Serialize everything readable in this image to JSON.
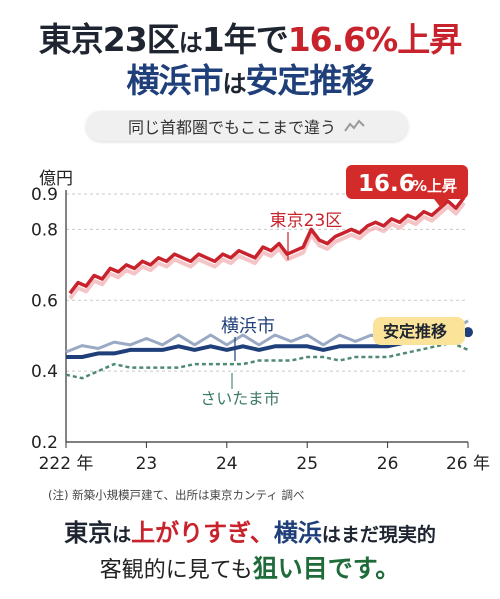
{
  "headline": {
    "line1_part1": "東京23区",
    "line1_part2": "は",
    "line1_part3": "1年で",
    "line1_part4": "16.6%上昇",
    "line2_part1": "横浜市",
    "line2_part2": "は",
    "line2_part3": "安定推移"
  },
  "subtitle": "同じ首都圏でもここまで違う",
  "colors": {
    "tokyo": "#c8232c",
    "yokohama": "#1f3f7a",
    "yokohama_light": "#9aaac4",
    "saitama": "#4f8a72",
    "saitama_light": "#a9c0b6",
    "callout_red": "#d32a2a",
    "callout_yellow": "#fbe39a"
  },
  "chart_data": {
    "type": "line",
    "yunit": "億円",
    "ylim": [
      0.2,
      0.9
    ],
    "yticks": [
      "0.2",
      "0.4",
      "0.6",
      "0.8",
      "0.9"
    ],
    "ytick_values": [
      0.2,
      0.4,
      0.6,
      0.8,
      0.9
    ],
    "xticks": [
      "222 年",
      "23",
      "24",
      "25",
      "26",
      "26 年"
    ],
    "xtick_values": [
      2022,
      2023,
      2024,
      2025,
      2026,
      2027
    ],
    "xlim": [
      2022,
      2027
    ],
    "grid": "horizontal dashed",
    "callouts": {
      "tokyo_badge_main": "16.6",
      "tokyo_badge_sub": "%上昇",
      "yokohama_badge": "安定推移"
    },
    "series": [
      {
        "name": "東京23区",
        "color": "#c8232c",
        "style": "solid-with-light-band",
        "x": [
          2022.05,
          2022.15,
          2022.25,
          2022.35,
          2022.45,
          2022.55,
          2022.65,
          2022.75,
          2022.85,
          2022.95,
          2023.05,
          2023.15,
          2023.25,
          2023.35,
          2023.45,
          2023.55,
          2023.65,
          2023.75,
          2023.85,
          2023.95,
          2024.05,
          2024.15,
          2024.25,
          2024.35,
          2024.45,
          2024.55,
          2024.65,
          2024.75,
          2024.85,
          2024.95,
          2025.05,
          2025.15,
          2025.25,
          2025.35,
          2025.45,
          2025.55,
          2025.65,
          2025.75,
          2025.85,
          2025.95,
          2026.05,
          2026.15,
          2026.25,
          2026.35,
          2026.45,
          2026.55,
          2026.65,
          2026.75,
          2026.85,
          2026.95
        ],
        "values": [
          0.62,
          0.65,
          0.64,
          0.67,
          0.66,
          0.69,
          0.68,
          0.7,
          0.69,
          0.71,
          0.7,
          0.72,
          0.71,
          0.73,
          0.72,
          0.71,
          0.73,
          0.72,
          0.71,
          0.73,
          0.72,
          0.74,
          0.73,
          0.72,
          0.75,
          0.74,
          0.76,
          0.73,
          0.74,
          0.75,
          0.8,
          0.77,
          0.76,
          0.78,
          0.79,
          0.8,
          0.79,
          0.81,
          0.82,
          0.81,
          0.83,
          0.82,
          0.84,
          0.83,
          0.85,
          0.84,
          0.86,
          0.88,
          0.86,
          0.89
        ]
      },
      {
        "name": "横浜市",
        "color": "#1f3f7a",
        "style": "solid-with-light-band",
        "x": [
          2022.0,
          2022.2,
          2022.4,
          2022.6,
          2022.8,
          2023.0,
          2023.2,
          2023.4,
          2023.6,
          2023.8,
          2024.0,
          2024.2,
          2024.4,
          2024.6,
          2024.8,
          2025.0,
          2025.2,
          2025.4,
          2025.6,
          2025.8,
          2026.0,
          2026.2,
          2026.4,
          2026.6,
          2026.8,
          2027.0
        ],
        "values": [
          0.44,
          0.44,
          0.45,
          0.45,
          0.46,
          0.46,
          0.46,
          0.47,
          0.46,
          0.47,
          0.46,
          0.47,
          0.46,
          0.47,
          0.47,
          0.47,
          0.46,
          0.47,
          0.47,
          0.47,
          0.47,
          0.48,
          0.48,
          0.49,
          0.5,
          0.51
        ]
      },
      {
        "name": "さいたま市",
        "color": "#4f8a72",
        "style": "dashed",
        "x": [
          2022.0,
          2022.2,
          2022.4,
          2022.6,
          2022.8,
          2023.0,
          2023.2,
          2023.4,
          2023.6,
          2023.8,
          2024.0,
          2024.2,
          2024.4,
          2024.6,
          2024.8,
          2025.0,
          2025.2,
          2025.4,
          2025.6,
          2025.8,
          2026.0,
          2026.2,
          2026.4,
          2026.6,
          2026.8,
          2027.0
        ],
        "values": [
          0.39,
          0.38,
          0.4,
          0.42,
          0.41,
          0.41,
          0.41,
          0.41,
          0.42,
          0.42,
          0.42,
          0.42,
          0.43,
          0.43,
          0.43,
          0.44,
          0.44,
          0.43,
          0.44,
          0.44,
          0.44,
          0.45,
          0.46,
          0.47,
          0.48,
          0.46
        ]
      }
    ]
  },
  "note": "(注) 新築小規模戸建て、出所は東京カンティ 調べ",
  "bottom": {
    "l1_a": "東京",
    "l1_b": "は",
    "l1_c": "上がりすぎ、",
    "l1_d": "横浜",
    "l1_e": "はまだ現実的",
    "l2_a": "客観的に見ても",
    "l2_b": "狙い目です。"
  }
}
